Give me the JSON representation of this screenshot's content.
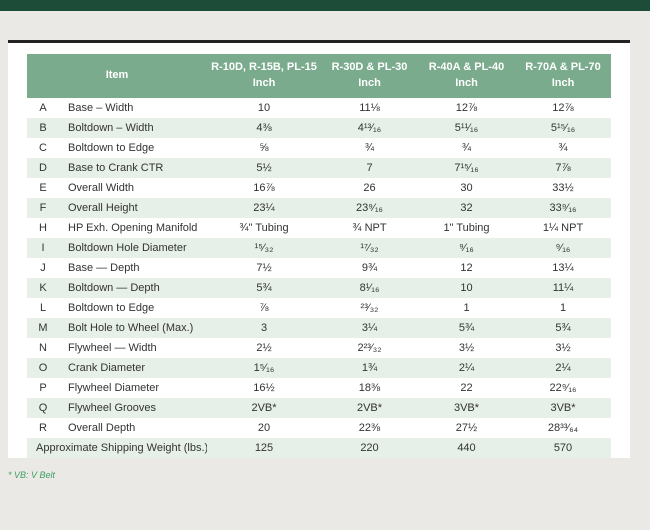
{
  "page": {
    "footnote": "* VB: V Belt"
  },
  "colors": {
    "top_bar": "#1d4c38",
    "header_green": "#7aab8d",
    "row_stripe": "#e6efe8",
    "page_background": "#ebe9e5",
    "footnote_green": "#3da065",
    "card_top_border": "#232323",
    "body_text": "#333333"
  },
  "table": {
    "header": {
      "item_label": "Item",
      "unit_label": "Inch",
      "columns": [
        "R-10D, R-15B, PL-15",
        "R-30D & PL-30",
        "R-40A & PL-40",
        "R-70A & PL-70"
      ]
    },
    "rows": [
      {
        "letter": "A",
        "item": "Base – Width",
        "values": [
          "10",
          "11⅛",
          "12⅞",
          "12⅞"
        ]
      },
      {
        "letter": "B",
        "item": "Boltdown – Width",
        "values": [
          "4⅜",
          "4¹³⁄₁₆",
          "5¹¹⁄₁₆",
          "5¹⁵⁄₁₆"
        ]
      },
      {
        "letter": "C",
        "item": "Boltdown to Edge",
        "values": [
          "⅝",
          "¾",
          "¾",
          "¾"
        ]
      },
      {
        "letter": "D",
        "item": "Base to Crank CTR",
        "values": [
          "5½",
          "7",
          "7¹⁵⁄₁₆",
          "7⅞"
        ]
      },
      {
        "letter": "E",
        "item": "Overall Width",
        "values": [
          "16⅞",
          "26",
          "30",
          "33½"
        ]
      },
      {
        "letter": "F",
        "item": "Overall Height",
        "values": [
          "23¼",
          "23⁹⁄₁₆",
          "32",
          "33⁹⁄₁₆"
        ]
      },
      {
        "letter": "H",
        "item": "HP Exh. Opening Manifold",
        "values": [
          "¾\" Tubing",
          "¾ NPT",
          "1\" Tubing",
          "1¼ NPT"
        ]
      },
      {
        "letter": "I",
        "item": "Boltdown Hole Diameter",
        "values": [
          "¹⁵⁄₃₂",
          "¹⁷⁄₃₂",
          "⁹⁄₁₆",
          "⁹⁄₁₆"
        ]
      },
      {
        "letter": "J",
        "item": "Base — Depth",
        "values": [
          "7½",
          "9¾",
          "12",
          "13¼"
        ]
      },
      {
        "letter": "K",
        "item": "Boltdown — Depth",
        "values": [
          "5¾",
          "8¹⁄₁₆",
          "10",
          "11¼"
        ]
      },
      {
        "letter": "L",
        "item": "Boltdown to Edge",
        "values": [
          "⅞",
          "²³⁄₃₂",
          "1",
          "1"
        ]
      },
      {
        "letter": "M",
        "item": "Bolt Hole to Wheel (Max.)",
        "values": [
          "3",
          "3¼",
          "5¾",
          "5¾"
        ]
      },
      {
        "letter": "N",
        "item": "Flywheel — Width",
        "values": [
          "2½",
          "2²³⁄₃₂",
          "3½",
          "3½"
        ]
      },
      {
        "letter": "O",
        "item": "Crank Diameter",
        "values": [
          "1⁵⁄₁₆",
          "1¾",
          "2¼",
          "2¼"
        ]
      },
      {
        "letter": "P",
        "item": "Flywheel Diameter",
        "values": [
          "16½",
          "18⅜",
          "22",
          "22⁹⁄₁₆"
        ]
      },
      {
        "letter": "Q",
        "item": "Flywheel Grooves",
        "values": [
          "2VB*",
          "2VB*",
          "3VB*",
          "3VB*"
        ]
      },
      {
        "letter": "R",
        "item": "Overall Depth",
        "values": [
          "20",
          "22⅜",
          "27½",
          "28³³⁄₆₄"
        ]
      }
    ],
    "footer_row": {
      "item": "Approximate Shipping Weight (lbs.)",
      "values": [
        "125",
        "220",
        "440",
        "570"
      ]
    }
  }
}
